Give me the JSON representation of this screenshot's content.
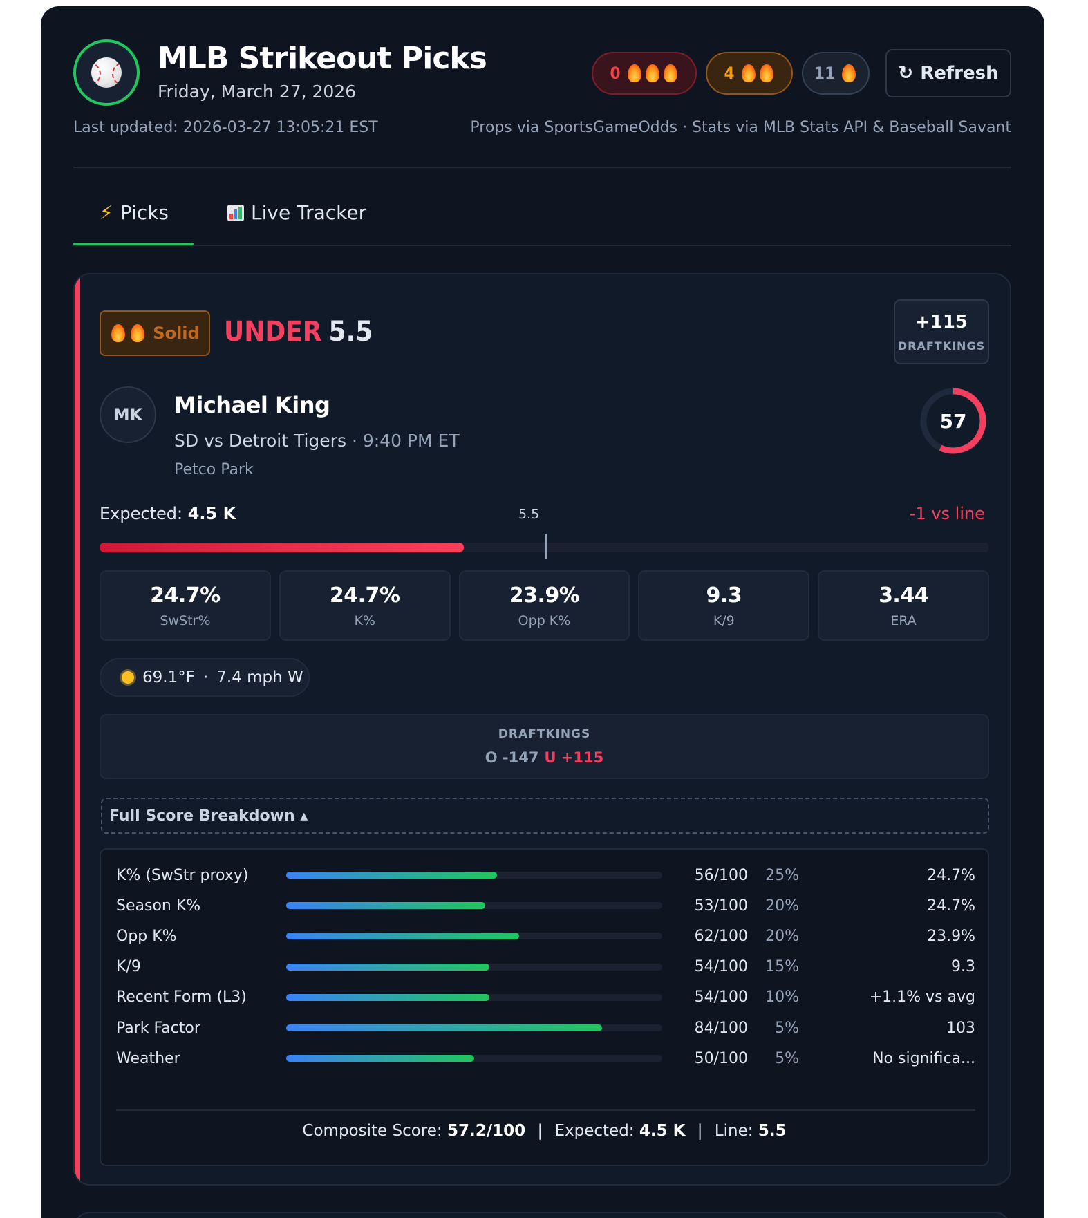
{
  "header": {
    "title": "MLB Strikeout Picks",
    "date": "Friday, March 27, 2026",
    "last_updated": "Last updated: 2026-03-27 13:05:21 EST",
    "sources": "Props via SportsGameOdds · Stats via MLB Stats API & Baseball Savant",
    "refresh_label": "Refresh",
    "refresh_icon": "↻",
    "counts": [
      {
        "count": "0",
        "flames": 3,
        "color": "#ef4444"
      },
      {
        "count": "4",
        "flames": 2,
        "color": "#f59e0b"
      },
      {
        "count": "11",
        "flames": 1,
        "color": "#94a3b8"
      }
    ]
  },
  "tabs": [
    {
      "icon": "⚡",
      "label": "Picks",
      "active": true
    },
    {
      "icon": "chart-icon",
      "label": "Live Tracker",
      "active": false
    }
  ],
  "pick": {
    "tier_label": "Solid",
    "tier_flames": 2,
    "direction": "UNDER",
    "line": "5.5",
    "odds": "+115",
    "book": "DRAFTKINGS",
    "pitcher_initials": "MK",
    "pitcher_name": "Michael King",
    "matchup": "SD vs Detroit Tigers",
    "time": "· 9:40 PM ET",
    "venue": "Petco Park",
    "score": "57",
    "score_fraction": 0.57,
    "expected_label": "Expected:",
    "expected_value": "4.5 K",
    "expected_k": 4.5,
    "line_value": 5.5,
    "bar_max": 11,
    "line_tick_label": "5.5",
    "vs_line": "-1 vs line",
    "stats": [
      {
        "value": "24.7%",
        "label": "SwStr%"
      },
      {
        "value": "24.7%",
        "label": "K%"
      },
      {
        "value": "23.9%",
        "label": "Opp K%"
      },
      {
        "value": "9.3",
        "label": "K/9"
      },
      {
        "value": "3.44",
        "label": "ERA"
      }
    ],
    "weather": {
      "temp": "69.1°F",
      "sep": "·",
      "wind": "7.4 mph W",
      "icon": "sun-icon"
    },
    "sportsbook": {
      "name": "DRAFTKINGS",
      "over": "O -147",
      "under": "U +115"
    },
    "breakdown_toggle": "Full Score Breakdown ▴",
    "breakdown": [
      {
        "label": "K% (SwStr proxy)",
        "score": 56,
        "score_text": "56/100",
        "weight": "25%",
        "value": "24.7%"
      },
      {
        "label": "Season K%",
        "score": 53,
        "score_text": "53/100",
        "weight": "20%",
        "value": "24.7%"
      },
      {
        "label": "Opp K%",
        "score": 62,
        "score_text": "62/100",
        "weight": "20%",
        "value": "23.9%"
      },
      {
        "label": "K/9",
        "score": 54,
        "score_text": "54/100",
        "weight": "15%",
        "value": "9.3"
      },
      {
        "label": "Recent Form (L3)",
        "score": 54,
        "score_text": "54/100",
        "weight": "10%",
        "value": "+1.1% vs avg"
      },
      {
        "label": "Park Factor",
        "score": 84,
        "score_text": "84/100",
        "weight": "5%",
        "value": "103"
      },
      {
        "label": "Weather",
        "score": 50,
        "score_text": "50/100",
        "weight": "5%",
        "value": "No significa..."
      }
    ],
    "summary": {
      "composite_label": "Composite Score:",
      "composite_value": "57.2/100",
      "expected_label": "Expected:",
      "expected_value": "4.5 K",
      "line_label": "Line:",
      "line_value": "5.5",
      "sep": "|"
    }
  }
}
